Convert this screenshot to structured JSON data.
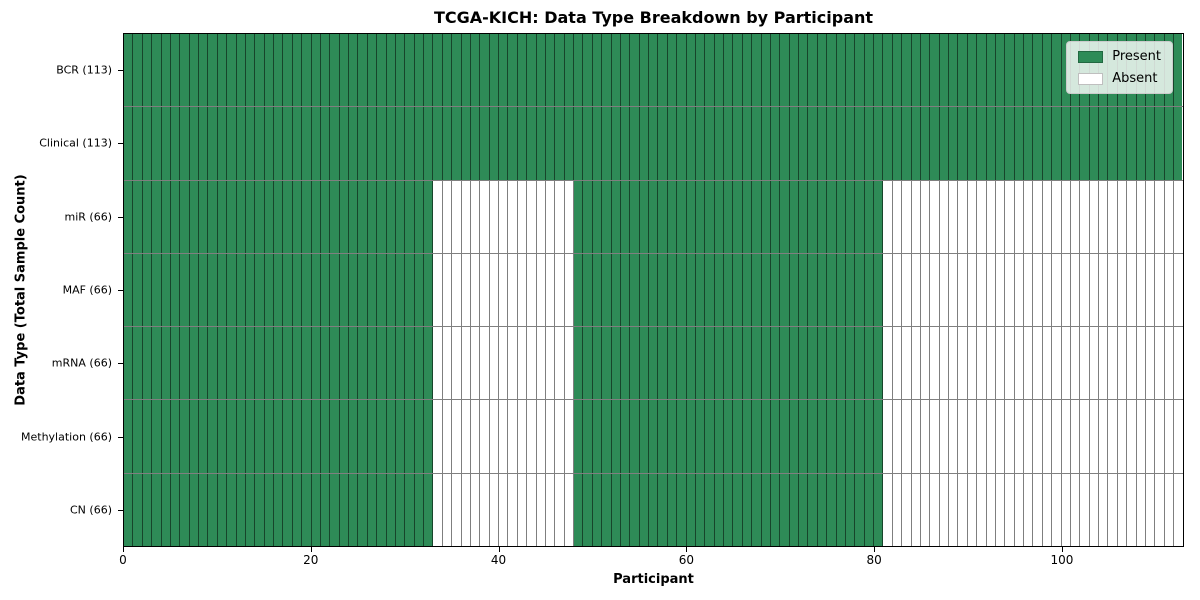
{
  "chart_data": {
    "type": "heatmap",
    "title": "TCGA-KICH: Data Type Breakdown by Participant",
    "xlabel": "Participant",
    "ylabel": "Data Type (Total Sample Count)",
    "n_participants": 113,
    "x_ticks": [
      0,
      20,
      40,
      60,
      80,
      100
    ],
    "legend_position": "upper right",
    "grid": true,
    "colors": {
      "present": "#2e8b57",
      "absent": "#ffffff",
      "cell_border": "rgba(0,0,0,0.5)",
      "plot_border": "#000000",
      "legend_background": "rgba(255,255,255,0.8)",
      "legend_border": "#cccccc"
    },
    "legend": [
      {
        "label": "Present",
        "key": "present"
      },
      {
        "label": "Absent",
        "key": "absent"
      }
    ],
    "rows": [
      {
        "label": "BCR (113)",
        "data_type": "BCR",
        "sample_count": 113,
        "present_ranges": [
          [
            0,
            113
          ]
        ],
        "absent_ranges": []
      },
      {
        "label": "Clinical (113)",
        "data_type": "Clinical",
        "sample_count": 113,
        "present_ranges": [
          [
            0,
            113
          ]
        ],
        "absent_ranges": []
      },
      {
        "label": "miR (66)",
        "data_type": "miR",
        "sample_count": 66,
        "present_ranges": [
          [
            0,
            33
          ],
          [
            48,
            81
          ]
        ],
        "absent_ranges": [
          [
            33,
            48
          ],
          [
            81,
            113
          ]
        ]
      },
      {
        "label": "MAF (66)",
        "data_type": "MAF",
        "sample_count": 66,
        "present_ranges": [
          [
            0,
            33
          ],
          [
            48,
            81
          ]
        ],
        "absent_ranges": [
          [
            33,
            48
          ],
          [
            81,
            113
          ]
        ]
      },
      {
        "label": "mRNA (66)",
        "data_type": "mRNA",
        "sample_count": 66,
        "present_ranges": [
          [
            0,
            33
          ],
          [
            48,
            81
          ]
        ],
        "absent_ranges": [
          [
            33,
            48
          ],
          [
            81,
            113
          ]
        ]
      },
      {
        "label": "Methylation (66)",
        "data_type": "Methylation",
        "sample_count": 66,
        "present_ranges": [
          [
            0,
            33
          ],
          [
            48,
            81
          ]
        ],
        "absent_ranges": [
          [
            33,
            48
          ],
          [
            81,
            113
          ]
        ]
      },
      {
        "label": "CN (66)",
        "data_type": "CN",
        "sample_count": 66,
        "present_ranges": [
          [
            0,
            33
          ],
          [
            48,
            81
          ]
        ],
        "absent_ranges": [
          [
            33,
            48
          ],
          [
            81,
            113
          ]
        ]
      }
    ]
  }
}
